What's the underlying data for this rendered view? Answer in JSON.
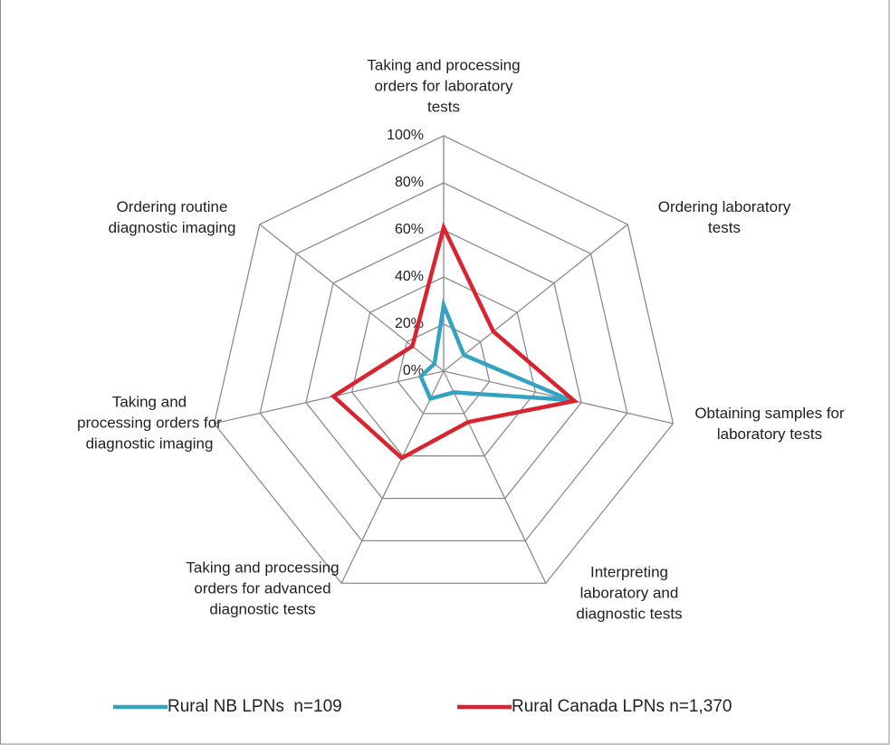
{
  "chart_data": {
    "type": "radar",
    "categories": [
      "Taking and processing orders for laboratory tests",
      "Ordering laboratory tests",
      "Obtaining samples for laboratory tests",
      "Interpreting laboratory and diagnostic tests",
      "Taking and processing orders for advanced diagnostic tests",
      "Taking and processing orders for diagnostic imaging",
      "Ordering routine diagnostic imaging"
    ],
    "series": [
      {
        "name": "Rural NB LPNs  n=109",
        "color": "#33a3c1",
        "values": [
          28,
          11,
          55,
          10,
          13,
          10,
          5
        ]
      },
      {
        "name": "Rural Canada LPNs n=1,370",
        "color": "#d9242f",
        "values": [
          61,
          27,
          57,
          24,
          41,
          48,
          17
        ]
      }
    ],
    "ylim": [
      0,
      100
    ],
    "yticks": [
      {
        "value": 0,
        "label": "0%"
      },
      {
        "value": 20,
        "label": "20%"
      },
      {
        "value": 40,
        "label": "40%"
      },
      {
        "value": 60,
        "label": "60%"
      },
      {
        "value": 80,
        "label": "80%"
      },
      {
        "value": 100,
        "label": "100%"
      }
    ],
    "grid": true,
    "legend": "bottom"
  }
}
